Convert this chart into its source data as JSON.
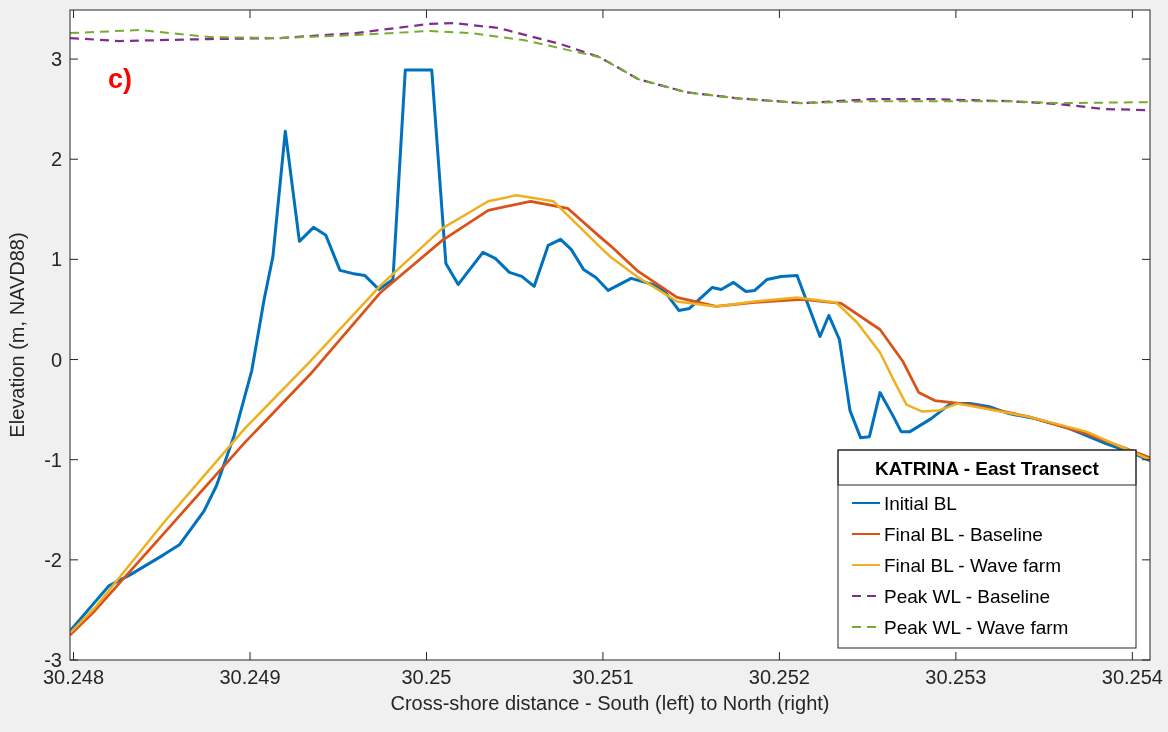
{
  "chart_data": {
    "type": "line",
    "xlabel": "Cross-shore distance - South (left) to North (right)",
    "ylabel": "Elevation (m, NAVD88)",
    "legend_title": "KATRINA - East Transect",
    "legend": "bottom right",
    "grid": false,
    "annotations": [
      "c)"
    ],
    "xlim": [
      30.24798,
      30.2541
    ],
    "xticks": [
      30.248,
      30.249,
      30.25,
      30.251,
      30.252,
      30.253,
      30.254
    ],
    "ylim": [
      -3,
      3.49
    ],
    "yticks": [
      -3,
      -2,
      -1,
      0,
      1,
      2,
      3
    ],
    "series": [
      {
        "name": "Initial BL",
        "color": "#0072bd",
        "line_style": "solid",
        "x": [
          30.24798,
          30.2482,
          30.24832,
          30.24851,
          30.2486,
          30.24874,
          30.24881,
          30.24891,
          30.24901,
          30.24908,
          30.24913,
          30.2492,
          30.24928,
          30.24936,
          30.24943,
          30.24951,
          30.24958,
          30.24965,
          30.24973,
          30.24981,
          30.24988,
          30.25003,
          30.25011,
          30.25018,
          30.25032,
          30.25039,
          30.25047,
          30.25054,
          30.25061,
          30.25069,
          30.25076,
          30.25082,
          30.25089,
          30.25096,
          30.25103,
          30.25116,
          30.25128,
          30.25135,
          30.25143,
          30.25149,
          30.25162,
          30.25167,
          30.25174,
          30.25181,
          30.25186,
          30.25193,
          30.25201,
          30.2521,
          30.25223,
          30.25228,
          30.25234,
          30.2524,
          30.25246,
          30.25251,
          30.25257,
          30.25264,
          30.25269,
          30.25274,
          30.25286,
          30.25297,
          30.25308,
          30.25319,
          30.2533,
          30.25345,
          30.25363,
          30.25385,
          30.25401,
          30.2541
        ],
        "values": [
          -2.71,
          -2.26,
          -2.15,
          -1.95,
          -1.85,
          -1.51,
          -1.26,
          -0.76,
          -0.11,
          0.6,
          1.03,
          2.28,
          1.18,
          1.32,
          1.24,
          0.89,
          0.86,
          0.84,
          0.7,
          0.8,
          2.89,
          2.89,
          0.96,
          0.75,
          1.07,
          1.01,
          0.87,
          0.83,
          0.73,
          1.14,
          1.2,
          1.1,
          0.9,
          0.82,
          0.69,
          0.81,
          0.75,
          0.68,
          0.49,
          0.51,
          0.72,
          0.7,
          0.77,
          0.68,
          0.69,
          0.8,
          0.83,
          0.84,
          0.23,
          0.44,
          0.2,
          -0.51,
          -0.78,
          -0.77,
          -0.33,
          -0.55,
          -0.72,
          -0.72,
          -0.59,
          -0.44,
          -0.44,
          -0.47,
          -0.54,
          -0.59,
          -0.68,
          -0.84,
          -0.94,
          -1.01
        ]
      },
      {
        "name": "Final BL - Baseline",
        "color": "#d95319",
        "line_style": "solid",
        "x": [
          30.24798,
          30.24812,
          30.24852,
          30.24897,
          30.24934,
          30.24974,
          30.25009,
          30.25035,
          30.25059,
          30.2508,
          30.25098,
          30.25104,
          30.2512,
          30.25142,
          30.25164,
          30.25186,
          30.25213,
          30.25235,
          30.25257,
          30.2527,
          30.25279,
          30.25288,
          30.25308,
          30.25341,
          30.25374,
          30.2541
        ],
        "values": [
          -2.75,
          -2.51,
          -1.72,
          -0.83,
          -0.15,
          0.67,
          1.19,
          1.49,
          1.58,
          1.51,
          1.23,
          1.14,
          0.88,
          0.62,
          0.53,
          0.57,
          0.6,
          0.56,
          0.3,
          -0.02,
          -0.33,
          -0.41,
          -0.45,
          -0.57,
          -0.74,
          -0.98
        ]
      },
      {
        "name": "Final BL - Wave farm",
        "color": "#edb120",
        "line_style": "solid",
        "x": [
          30.24798,
          30.24812,
          30.24852,
          30.24897,
          30.24934,
          30.24974,
          30.25009,
          30.25035,
          30.25051,
          30.25072,
          30.25098,
          30.25104,
          30.2512,
          30.25142,
          30.25164,
          30.25186,
          30.2521,
          30.25232,
          30.25244,
          30.25257,
          30.25264,
          30.25272,
          30.25281,
          30.2529,
          30.25301,
          30.25341,
          30.25374,
          30.2541
        ],
        "values": [
          -2.73,
          -2.48,
          -1.61,
          -0.69,
          -0.02,
          0.74,
          1.31,
          1.58,
          1.64,
          1.58,
          1.13,
          1.03,
          0.82,
          0.58,
          0.53,
          0.58,
          0.62,
          0.57,
          0.37,
          0.07,
          -0.18,
          -0.45,
          -0.52,
          -0.51,
          -0.44,
          -0.57,
          -0.72,
          -1.0
        ]
      },
      {
        "name": "Peak WL - Baseline",
        "color": "#7e2f8e",
        "line_style": "dashed",
        "x": [
          30.24798,
          30.24826,
          30.24877,
          30.24917,
          30.2496,
          30.25001,
          30.25015,
          30.25041,
          30.25076,
          30.25098,
          30.25104,
          30.2512,
          30.25147,
          30.25175,
          30.25213,
          30.25252,
          30.25286,
          30.2533,
          30.25359,
          30.25385,
          30.2541
        ],
        "values": [
          3.21,
          3.18,
          3.2,
          3.21,
          3.26,
          3.35,
          3.36,
          3.31,
          3.15,
          3.02,
          2.96,
          2.8,
          2.67,
          2.61,
          2.56,
          2.6,
          2.6,
          2.58,
          2.55,
          2.5,
          2.49
        ]
      },
      {
        "name": "Peak WL - Wave farm",
        "color": "#77ac30",
        "line_style": "dashed",
        "x": [
          30.24798,
          30.24838,
          30.24877,
          30.24917,
          30.2496,
          30.25001,
          30.25025,
          30.25055,
          30.25098,
          30.25104,
          30.2512,
          30.25147,
          30.25175,
          30.25213,
          30.25252,
          30.2533,
          30.25359,
          30.2541
        ],
        "values": [
          3.26,
          3.29,
          3.22,
          3.21,
          3.24,
          3.28,
          3.26,
          3.19,
          3.02,
          2.96,
          2.8,
          2.67,
          2.61,
          2.56,
          2.58,
          2.58,
          2.56,
          2.57
        ]
      }
    ]
  }
}
